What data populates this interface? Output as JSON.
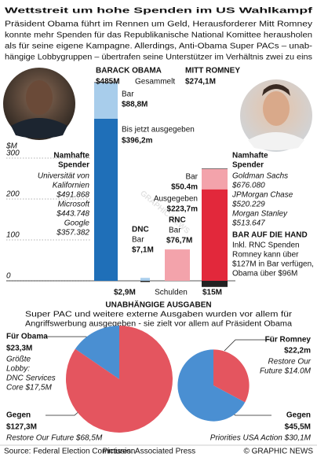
{
  "title": "Wettstreit um hohe Spenden im US Wahlkampf",
  "subtitle": [
    "Präsident Obama führt im Rennen um Geld, Herausforderer Mitt Romney",
    "konnte mehr Spenden für das Republikanische National Komittee herausholen",
    "als für seine eigene Kampagne. Allerdings, Anti-Obama Super PACs – unab-",
    "hängige Lobbygruppen – übertrafen seine Unterstützer im Verhältnis zwei zu eins"
  ],
  "watermark": "GRAPHIC NEWS",
  "chart_data": [
    {
      "type": "bar",
      "y_label": "$M",
      "ylim": [
        0,
        500
      ],
      "yticks": [
        0,
        100,
        200,
        300
      ],
      "grid": true,
      "bars": [
        {
          "name": "BARACK OBAMA",
          "total": 485,
          "total_label": "$485M",
          "total_note": "Gesammelt",
          "segments": [
            {
              "name": "Bis jetzt ausgegeben",
              "value": 396.2,
              "value_label": "$396,2m",
              "color": "#1f6fb8"
            },
            {
              "name": "Bar",
              "value": 88.8,
              "value_label": "$88,8M",
              "color": "#a8cdeb"
            }
          ]
        },
        {
          "name": "DNC",
          "segments": [
            {
              "name": "Bar",
              "value": 7.1,
              "value_label": "$7,1M",
              "color": "#a8cdeb"
            }
          ],
          "debt": 2.9,
          "debt_label": "$2,9M"
        },
        {
          "name": "RNC",
          "segments": [
            {
              "name": "Bar",
              "value": 76.7,
              "value_label": "$76,7M",
              "color": "#f3a3ab"
            }
          ]
        },
        {
          "name": "MITT ROMNEY",
          "total": 274.1,
          "total_label": "$274,1M",
          "segments": [
            {
              "name": "Ausgegeben",
              "value": 223.7,
              "value_label": "$223,7m",
              "color": "#e2283b"
            },
            {
              "name": "Bar",
              "value": 50.4,
              "value_label": "$50.4m",
              "color": "#f3a3ab"
            }
          ],
          "debt": 15,
          "debt_label": "$15M"
        }
      ],
      "debt_title": "Schulden",
      "obama_donors": {
        "title": [
          "Namhafte",
          "Spender"
        ],
        "lines": [
          "Universität von",
          "Kalifornien",
          "$491.868",
          "Microsoft",
          "$443.748",
          "Google",
          "$357.382"
        ]
      },
      "romney_donors": {
        "title": [
          "Namhafte",
          "Spender"
        ],
        "lines": [
          "Goldman Sachs",
          "$676.080",
          "JPMorgan Chase",
          "$520.229",
          "Morgan Stanley",
          "$513.647"
        ]
      },
      "cash_note": {
        "title": "BAR AUF DIE HAND",
        "lines": [
          "Inkl. RNC Spenden",
          "Romney kann über",
          "$127M in Bar verfügen,",
          "Obama über $96M"
        ]
      }
    },
    {
      "type": "pie",
      "categories": [
        "Für Obama",
        "Gegen"
      ],
      "values": [
        23.3,
        127.3
      ],
      "value_labels": [
        "$23,3M",
        "$127,3M"
      ],
      "colors": [
        "#4a8fd2",
        "#e4555f"
      ],
      "notes": [
        [
          "Größte",
          "Lobby:",
          "DNC Services",
          "Core $17,5M"
        ],
        [
          "Restore Our Future $68,5M"
        ]
      ]
    },
    {
      "type": "pie",
      "categories": [
        "Für Romney",
        "Gegen"
      ],
      "values": [
        22.2,
        45.5
      ],
      "value_labels": [
        "$22,2m",
        "$45,5M"
      ],
      "colors": [
        "#e4555f",
        "#4a8fd2"
      ],
      "notes": [
        [
          "Restore Our",
          "Future $14.0M"
        ],
        [
          "Priorities USA Action $30,1M"
        ]
      ]
    }
  ],
  "section": {
    "title": "UNABHÄNGIGE AUSGABEN",
    "lines": [
      "Super PAC und weitere externe Ausgaben wurden vor allem für",
      "Angriffswerbung ausgegeben - sie zielt vor allem auf Präsident Obama"
    ]
  },
  "footer": {
    "source": "Source: Federal Election Commission",
    "pictures": "Pictures: Associated Press",
    "credit": "© GRAPHIC NEWS"
  }
}
